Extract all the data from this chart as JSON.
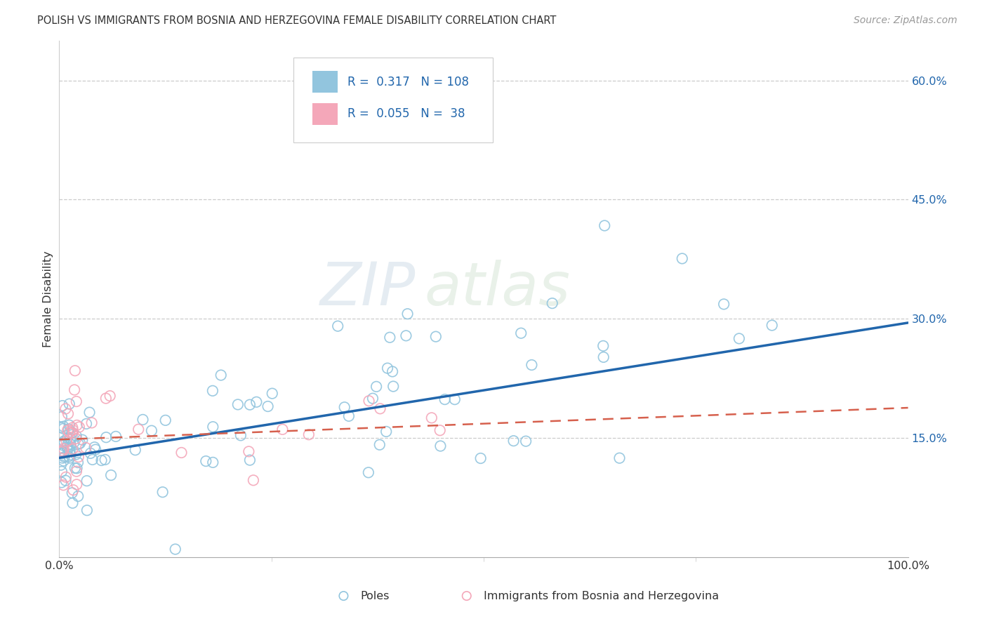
{
  "title": "POLISH VS IMMIGRANTS FROM BOSNIA AND HERZEGOVINA FEMALE DISABILITY CORRELATION CHART",
  "source": "Source: ZipAtlas.com",
  "ylabel": "Female Disability",
  "xlim": [
    0.0,
    1.0
  ],
  "ylim": [
    0.0,
    0.65
  ],
  "yticks": [
    0.15,
    0.3,
    0.45,
    0.6
  ],
  "ytick_labels": [
    "15.0%",
    "30.0%",
    "45.0%",
    "60.0%"
  ],
  "xtick_labels": [
    "0.0%",
    "100.0%"
  ],
  "legend_R1": "0.317",
  "legend_N1": "108",
  "legend_R2": "0.055",
  "legend_N2": "38",
  "color_poles": "#92c5de",
  "color_bosnia": "#f4a7b9",
  "trendline_color_poles": "#2166ac",
  "trendline_color_bosnia": "#d6604d",
  "watermark_zip": "ZIP",
  "watermark_atlas": "atlas",
  "background_color": "#ffffff",
  "grid_color": "#cccccc",
  "poles_trend_x0": 0.0,
  "poles_trend_y0": 0.125,
  "poles_trend_x1": 1.0,
  "poles_trend_y1": 0.295,
  "bosnia_trend_x0": 0.0,
  "bosnia_trend_y0": 0.148,
  "bosnia_trend_x1": 1.0,
  "bosnia_trend_y1": 0.188
}
